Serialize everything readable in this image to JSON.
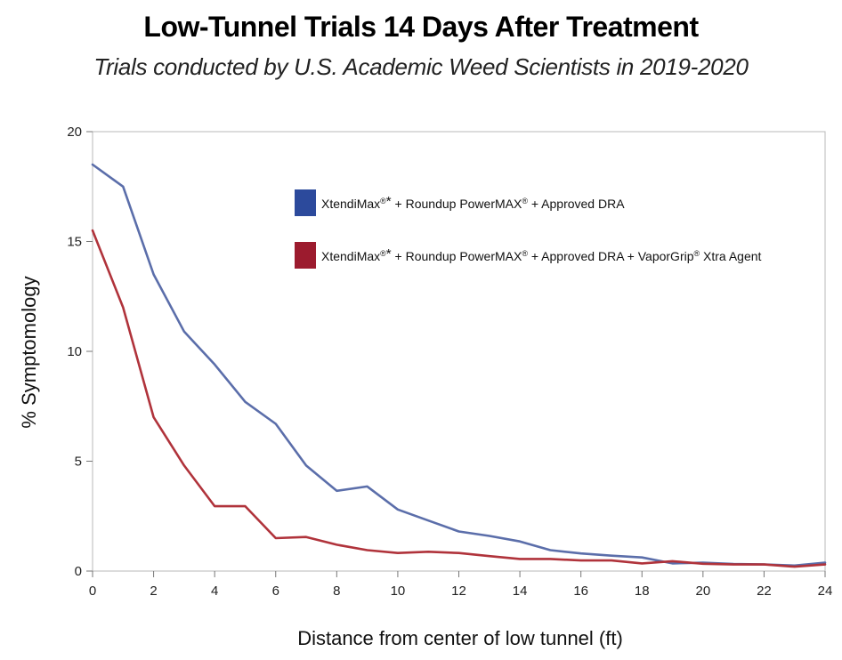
{
  "chart_data": {
    "type": "line",
    "title": "Low-Tunnel Trials 14 Days After Treatment",
    "subtitle": "Trials conducted by U.S. Academic Weed Scientists in 2019-2020",
    "xlabel": "Distance from center of low tunnel (ft)",
    "ylabel": "% Symptomology",
    "xlim": [
      0,
      24
    ],
    "ylim": [
      0,
      20
    ],
    "xticks": [
      0,
      2,
      4,
      6,
      8,
      10,
      12,
      14,
      16,
      18,
      20,
      22,
      24
    ],
    "yticks": [
      0,
      5,
      10,
      15,
      20
    ],
    "x": [
      0,
      1,
      2,
      3,
      4,
      5,
      6,
      7,
      8,
      9,
      10,
      11,
      12,
      13,
      14,
      15,
      16,
      17,
      18,
      19,
      20,
      21,
      22,
      23,
      24
    ],
    "series": [
      {
        "name": "XtendiMax®* + Roundup PowerMAX® + Approved DRA",
        "legend_parts": [
          "XtendiMax",
          "®",
          "*",
          " + Roundup PowerMAX",
          "®",
          " + Approved DRA"
        ],
        "color": "#5b6eaa",
        "swatch_color": "#2c4a9c",
        "values": [
          18.5,
          17.5,
          13.5,
          10.9,
          9.4,
          7.7,
          6.7,
          4.8,
          3.65,
          3.85,
          2.8,
          2.3,
          1.8,
          1.6,
          1.35,
          0.95,
          0.8,
          0.7,
          0.62,
          0.35,
          0.38,
          0.32,
          0.3,
          0.25,
          0.38
        ]
      },
      {
        "name": "XtendiMax®* + Roundup PowerMAX® + Approved DRA + VaporGrip® Xtra Agent",
        "legend_parts": [
          "XtendiMax",
          "®",
          "*",
          " + Roundup PowerMAX",
          "®",
          " + Approved DRA + VaporGrip",
          "®",
          " Xtra Agent"
        ],
        "color": "#b0333b",
        "swatch_color": "#9c1b2e",
        "values": [
          15.5,
          12.0,
          7.0,
          4.8,
          2.95,
          2.95,
          1.5,
          1.55,
          1.2,
          0.95,
          0.82,
          0.88,
          0.82,
          0.68,
          0.55,
          0.55,
          0.48,
          0.48,
          0.35,
          0.45,
          0.33,
          0.3,
          0.3,
          0.2,
          0.3
        ]
      }
    ],
    "legend_position": "upper-right inside plot",
    "grid": false
  }
}
